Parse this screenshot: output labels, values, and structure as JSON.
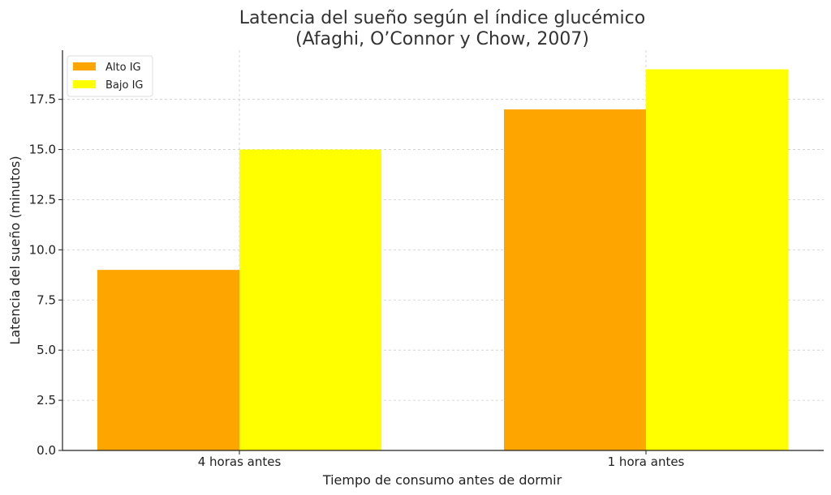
{
  "chart_data": {
    "type": "bar",
    "title_lines": [
      "Latencia del sueño según el índice glucémico",
      "(Afaghi, O’Connor y Chow, 2007)"
    ],
    "xlabel": "Tiempo de consumo antes de dormir",
    "ylabel": "Latencia del sueño (minutos)",
    "categories": [
      "4 horas antes",
      "1 hora antes"
    ],
    "series": [
      {
        "name": "Alto IG",
        "color": "#FFA500",
        "values": [
          9,
          17
        ]
      },
      {
        "name": "Bajo IG",
        "color": "#FFFF00",
        "values": [
          15,
          19
        ]
      }
    ],
    "ylim": [
      0,
      19.95
    ],
    "yticks": [
      0.0,
      2.5,
      5.0,
      7.5,
      10.0,
      12.5,
      15.0,
      17.5
    ],
    "ytick_labels": [
      "0.0",
      "2.5",
      "5.0",
      "7.5",
      "10.0",
      "12.5",
      "15.0",
      "17.5"
    ],
    "grid": true,
    "legend_position": "top-left"
  }
}
